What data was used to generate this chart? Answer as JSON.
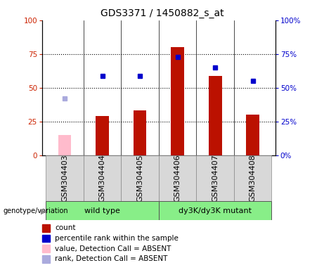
{
  "title": "GDS3371 / 1450882_s_at",
  "categories": [
    "GSM304403",
    "GSM304404",
    "GSM304405",
    "GSM304406",
    "GSM304407",
    "GSM304408"
  ],
  "bar_values": [
    null,
    29,
    33,
    80,
    59,
    30
  ],
  "bar_color": "#bb1100",
  "absent_bar_value": 15,
  "absent_bar_idx": 0,
  "absent_bar_color": "#ffbbcc",
  "rank_values": [
    null,
    59,
    59,
    73,
    65,
    55
  ],
  "rank_color": "#0000cc",
  "absent_rank_value": 42,
  "absent_rank_idx": 0,
  "absent_rank_color": "#aaaadd",
  "ylim": [
    0,
    100
  ],
  "yticks": [
    0,
    25,
    50,
    75,
    100
  ],
  "groups": [
    {
      "label": "wild type",
      "start": 0,
      "end": 2,
      "color": "#88ee88"
    },
    {
      "label": "dy3K/dy3K mutant",
      "start": 3,
      "end": 5,
      "color": "#88ee88"
    }
  ],
  "genotype_label": "genotype/variation",
  "legend_items": [
    {
      "label": "count",
      "color": "#bb1100"
    },
    {
      "label": "percentile rank within the sample",
      "color": "#0000cc"
    },
    {
      "label": "value, Detection Call = ABSENT",
      "color": "#ffbbcc"
    },
    {
      "label": "rank, Detection Call = ABSENT",
      "color": "#aaaadd"
    }
  ],
  "title_fontsize": 10,
  "tick_fontsize": 7.5,
  "label_fontsize": 8,
  "legend_fontsize": 7.5
}
